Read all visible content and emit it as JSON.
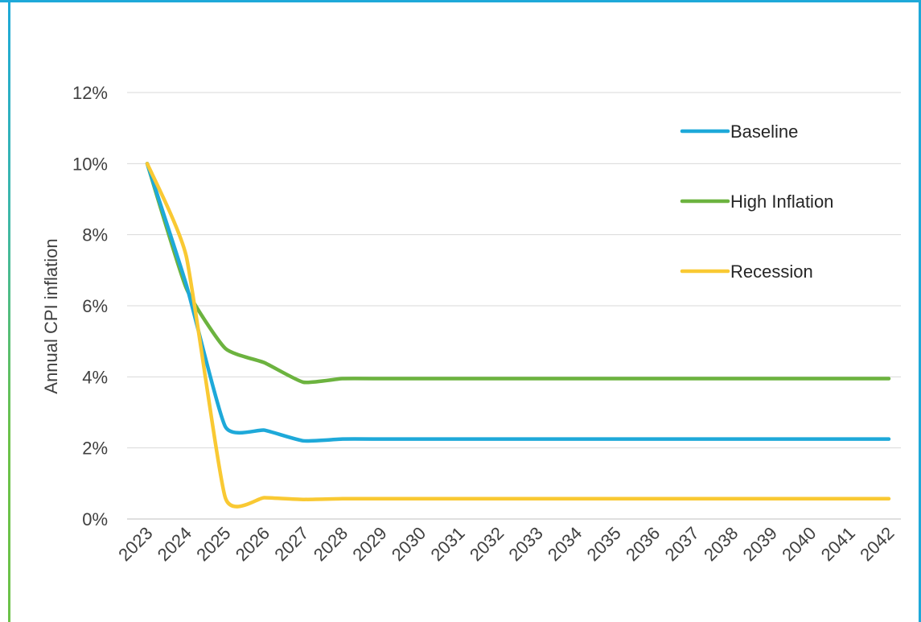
{
  "chart_data": {
    "type": "line",
    "title": "",
    "xlabel": "",
    "ylabel": "Annual CPI inflation",
    "ylim": [
      0,
      12
    ],
    "y_ticks": [
      "0%",
      "2%",
      "4%",
      "6%",
      "8%",
      "10%",
      "12%"
    ],
    "y_tick_values": [
      0,
      2,
      4,
      6,
      8,
      10,
      12
    ],
    "grid": "horizontal",
    "legend_position": "top-right",
    "categories": [
      "2023",
      "2024",
      "2025",
      "2026",
      "2027",
      "2028",
      "2029",
      "2030",
      "2031",
      "2032",
      "2033",
      "2034",
      "2035",
      "2036",
      "2037",
      "2038",
      "2039",
      "2040",
      "2041",
      "2042"
    ],
    "series": [
      {
        "name": "Baseline",
        "color": "#1ea9d9",
        "values": [
          10.0,
          6.6,
          2.6,
          2.5,
          2.2,
          2.25,
          2.25,
          2.25,
          2.25,
          2.25,
          2.25,
          2.25,
          2.25,
          2.25,
          2.25,
          2.25,
          2.25,
          2.25,
          2.25,
          2.25
        ]
      },
      {
        "name": "High Inflation",
        "color": "#6cb33f",
        "values": [
          10.0,
          6.5,
          4.8,
          4.4,
          3.85,
          3.95,
          3.95,
          3.95,
          3.95,
          3.95,
          3.95,
          3.95,
          3.95,
          3.95,
          3.95,
          3.95,
          3.95,
          3.95,
          3.95,
          3.95
        ]
      },
      {
        "name": "Recession",
        "color": "#f9c933",
        "values": [
          10.0,
          7.4,
          0.6,
          0.6,
          0.55,
          0.57,
          0.57,
          0.57,
          0.57,
          0.57,
          0.57,
          0.57,
          0.57,
          0.57,
          0.57,
          0.57,
          0.57,
          0.57,
          0.57,
          0.57
        ]
      }
    ]
  }
}
